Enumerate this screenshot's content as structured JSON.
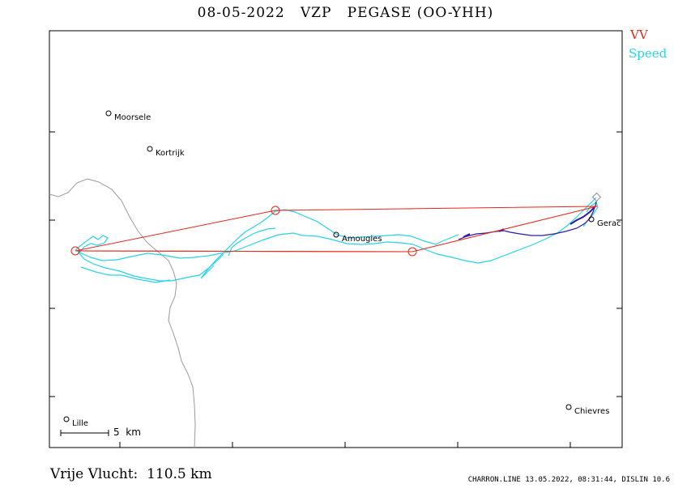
{
  "header": {
    "title": "08-05-2022   VZP   PEGASE (OO-YHH)"
  },
  "legend": {
    "vv": "VV",
    "speed": "Speed"
  },
  "places": [
    {
      "name": "Moorsele",
      "icon": "town-marker-icon"
    },
    {
      "name": "Kortrijk",
      "icon": "town-marker-icon"
    },
    {
      "name": "Amougies",
      "icon": "town-marker-icon"
    },
    {
      "name": "Gerac",
      "icon": "town-marker-icon"
    },
    {
      "name": "Lille",
      "icon": "town-marker-icon"
    },
    {
      "name": "Chievres",
      "icon": "town-marker-icon"
    }
  ],
  "scale": {
    "label": "5  km"
  },
  "footer": {
    "distance": "Vrije Vlucht:  110.5 km",
    "meta": "CHARRON.LINE 13.05.2022, 08:31:44, DISLIN 10.6"
  },
  "colors": {
    "task": "#e8261a",
    "track": "#27d3e8",
    "track_dark": "#2a1aa6",
    "border": "#9a9a9a",
    "frame": "#000000"
  }
}
